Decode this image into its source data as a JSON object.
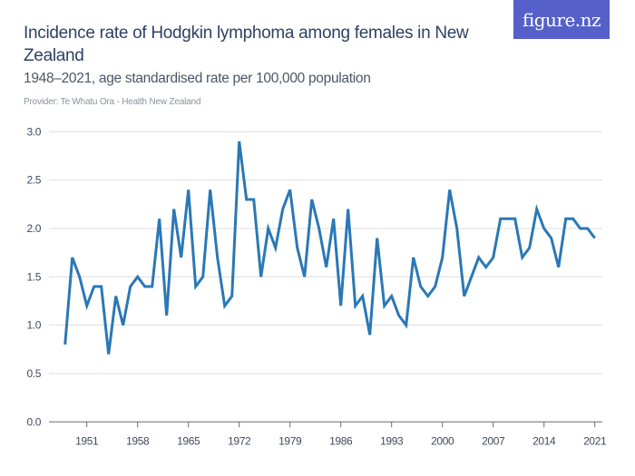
{
  "header": {
    "title": "Incidence rate of Hodgkin lymphoma among females in New Zealand",
    "subtitle": "1948–2021, age standardised rate per 100,000 population",
    "provider": "Provider: Te Whatu Ora - Health New Zealand",
    "logo_text": "figure.nz",
    "logo_color": "#5560c8"
  },
  "chart_data": {
    "type": "line",
    "title": "Incidence rate of Hodgkin lymphoma among females in New Zealand",
    "subtitle": "1948–2021, age standardised rate per 100,000 population",
    "xlabel": "",
    "ylabel": "",
    "ylim": [
      0,
      3.0
    ],
    "xlim": [
      1948,
      2021
    ],
    "yticks": [
      0.0,
      0.5,
      1.0,
      1.5,
      2.0,
      2.5,
      3.0
    ],
    "ytick_labels": [
      "0.0",
      "0.5",
      "1.0",
      "1.5",
      "2.0",
      "2.5",
      "3.0"
    ],
    "xticks": [
      1951,
      1958,
      1965,
      1972,
      1979,
      1986,
      1993,
      2000,
      2007,
      2014,
      2021
    ],
    "xtick_labels": [
      "1951",
      "1958",
      "1965",
      "1972",
      "1979",
      "1986",
      "1993",
      "2000",
      "2007",
      "2014",
      "2021"
    ],
    "grid": true,
    "legend": "none",
    "line_color": "#2a78b5",
    "x": [
      1948,
      1949,
      1950,
      1951,
      1952,
      1953,
      1954,
      1955,
      1956,
      1957,
      1958,
      1959,
      1960,
      1961,
      1962,
      1963,
      1964,
      1965,
      1966,
      1967,
      1968,
      1969,
      1970,
      1971,
      1972,
      1973,
      1974,
      1975,
      1976,
      1977,
      1978,
      1979,
      1980,
      1981,
      1982,
      1983,
      1984,
      1985,
      1986,
      1987,
      1988,
      1989,
      1990,
      1991,
      1992,
      1993,
      1994,
      1995,
      1996,
      1997,
      1998,
      1999,
      2000,
      2001,
      2002,
      2003,
      2004,
      2005,
      2006,
      2007,
      2008,
      2009,
      2010,
      2011,
      2012,
      2013,
      2014,
      2015,
      2016,
      2017,
      2018,
      2019,
      2020,
      2021
    ],
    "series": [
      {
        "name": "Incidence rate",
        "values": [
          0.8,
          1.7,
          1.5,
          1.2,
          1.4,
          1.4,
          0.7,
          1.3,
          1.0,
          1.4,
          1.5,
          1.4,
          1.4,
          2.1,
          1.1,
          2.2,
          1.7,
          2.4,
          1.4,
          1.5,
          2.4,
          1.7,
          1.2,
          1.3,
          2.9,
          2.3,
          2.3,
          1.5,
          2.0,
          1.8,
          2.2,
          2.4,
          1.8,
          1.5,
          2.3,
          2.0,
          1.6,
          2.1,
          1.2,
          2.2,
          1.2,
          1.3,
          0.9,
          1.9,
          1.2,
          1.3,
          1.1,
          1.0,
          1.7,
          1.4,
          1.3,
          1.4,
          1.7,
          2.4,
          2.0,
          1.3,
          1.5,
          1.7,
          1.6,
          1.7,
          2.1,
          2.1,
          2.1,
          1.7,
          1.8,
          2.2,
          2.0,
          1.9,
          1.6,
          2.1,
          2.1,
          2.0,
          2.0,
          1.9
        ]
      }
    ]
  }
}
